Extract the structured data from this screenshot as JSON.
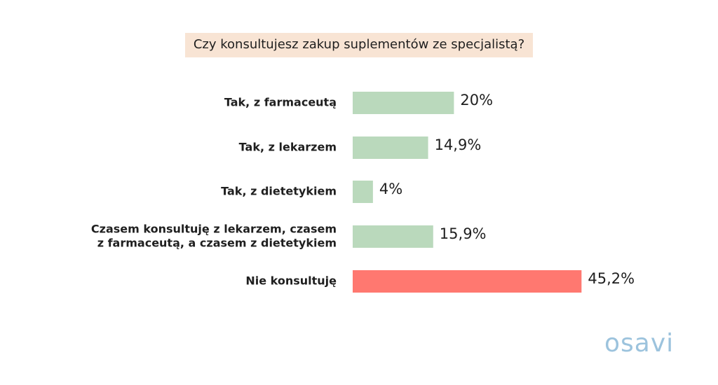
{
  "chart_data": {
    "type": "bar",
    "orientation": "horizontal",
    "title": "Czy konsultujesz zakup suplementów ze specjalistą?",
    "categories": [
      "Tak, z farmaceutą",
      "Tak, z lekarzem",
      "Tak, z dietetykiem",
      "Czasem konsultuję z lekarzem, czasem z farmaceutą, a czasem z dietetykiem",
      "Nie konsultuję"
    ],
    "category_lines": [
      [
        "Tak, z farmaceutą"
      ],
      [
        "Tak, z lekarzem"
      ],
      [
        "Tak, z dietetykiem"
      ],
      [
        "Czasem konsultuję z lekarzem, czasem",
        "z farmaceutą, a czasem z dietetykiem"
      ],
      [
        "Nie konsultuję"
      ]
    ],
    "values": [
      20,
      14.9,
      4,
      15.9,
      45.2
    ],
    "value_labels": [
      "20%",
      "14,9%",
      "4%",
      "15,9%",
      "45,2%"
    ],
    "colors": [
      "#bad9bc",
      "#bad9bc",
      "#bad9bc",
      "#bad9bc",
      "#ff7870"
    ],
    "xlim": [
      0,
      100
    ],
    "grid": false,
    "legend": "none"
  },
  "logo_text": "osavi"
}
